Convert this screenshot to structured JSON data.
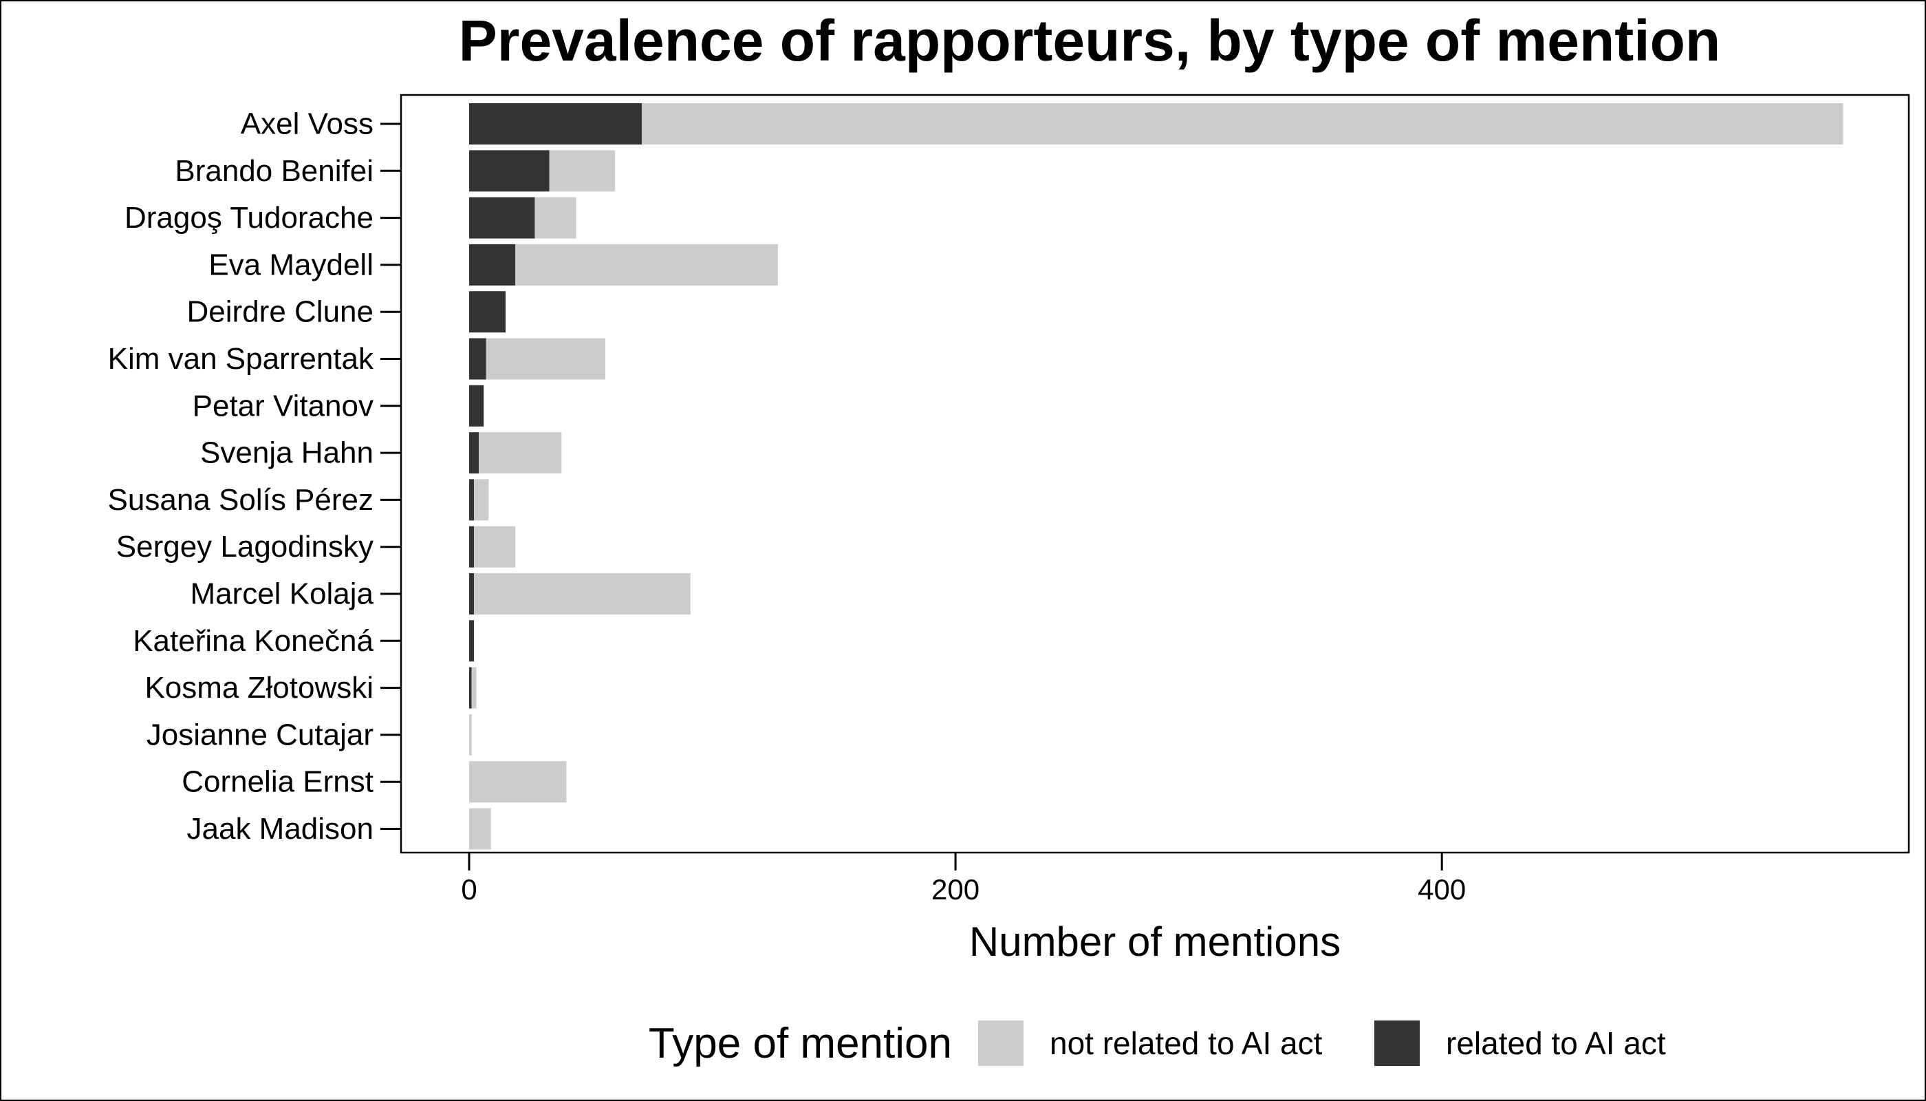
{
  "chart_data": {
    "type": "bar",
    "orientation": "horizontal",
    "stacked": true,
    "title": "Prevalence of rapporteurs, by type of mention",
    "xlabel": "Number of mentions",
    "ylabel": "",
    "xlim": [
      -28,
      592
    ],
    "xticks": [
      0,
      200,
      400
    ],
    "grid": false,
    "legend": {
      "title": "Type of mention",
      "placement": "bottom"
    },
    "categories": [
      "Axel Voss",
      "Brando Benifei",
      "Dragoş Tudorache",
      "Eva Maydell",
      "Deirdre Clune",
      "Kim van Sparrentak",
      "Petar Vitanov",
      "Svenja Hahn",
      "Susana Solís Pérez",
      "Sergey Lagodinsky",
      "Marcel Kolaja",
      "Kateřina Konečná",
      "Kosma Złotowski",
      "Josianne Cutajar",
      "Cornelia Ernst",
      "Jaak Madison"
    ],
    "series": [
      {
        "name": "related to AI act",
        "color": "#333333",
        "values": [
          71,
          33,
          27,
          19,
          15,
          7,
          6,
          4,
          2,
          2,
          2,
          2,
          1,
          0,
          0,
          0
        ]
      },
      {
        "name": "not related to AI act",
        "color": "#cccccc",
        "values": [
          494,
          27,
          17,
          108,
          0,
          49,
          0,
          34,
          6,
          17,
          89,
          0,
          2,
          1,
          40,
          9
        ]
      }
    ]
  }
}
